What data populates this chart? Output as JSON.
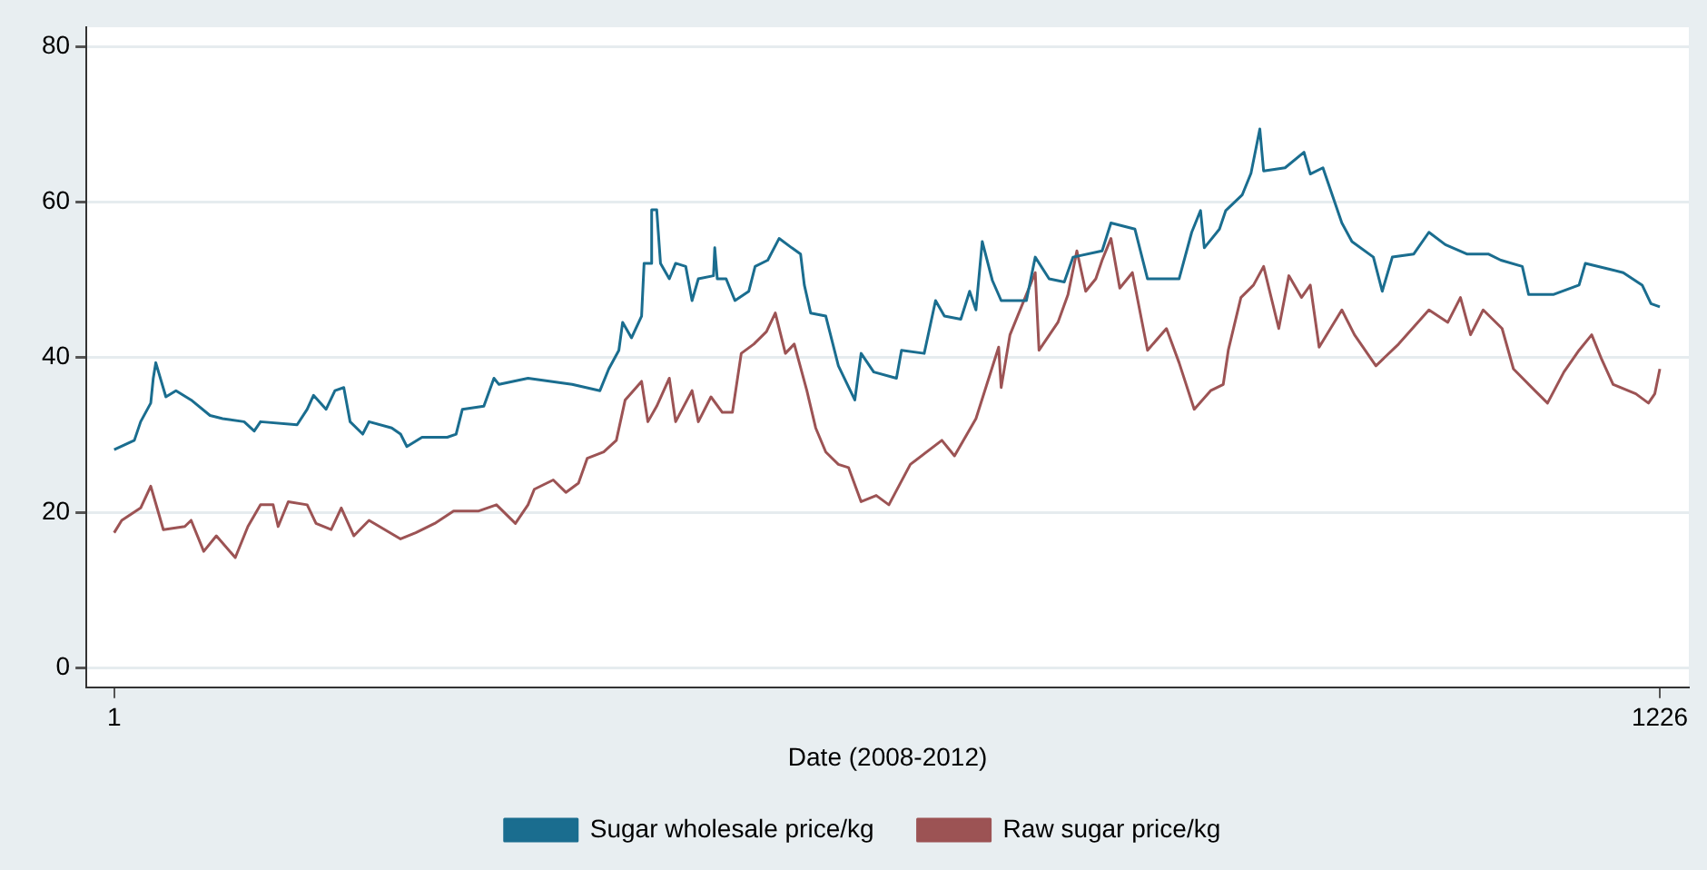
{
  "chart_data": {
    "type": "line",
    "xlabel": "Date (2008-2012)",
    "xlim": [
      -21,
      1249
    ],
    "xticks": [
      1,
      1226
    ],
    "ylim": [
      -2.5,
      82.5
    ],
    "yticks": [
      0,
      20,
      40,
      60,
      80
    ],
    "grid": "y",
    "legend": "bottom",
    "marker": "none",
    "line_style": "solid",
    "series": [
      {
        "name": "Sugar wholesale price/kg",
        "color": "#1a6d8f",
        "x": [
          1,
          17,
          22,
          30,
          32,
          34,
          42,
          50,
          62,
          77,
          87,
          104,
          112,
          117,
          146,
          154,
          159,
          169,
          176,
          183,
          188,
          198,
          203,
          221,
          228,
          233,
          245,
          265,
          272,
          277,
          294,
          302,
          306,
          329,
          364,
          386,
          393,
          401,
          404,
          411,
          419,
          421,
          426,
          427,
          431,
          434,
          441,
          446,
          454,
          459,
          464,
          476,
          477,
          479,
          486,
          493,
          504,
          509,
          519,
          528,
          538,
          545,
          548,
          553,
          565,
          575,
          588,
          593,
          603,
          621,
          625,
          643,
          652,
          659,
          672,
          679,
          684,
          689,
          697,
          704,
          724,
          731,
          742,
          754,
          761,
          784,
          791,
          810,
          820,
          845,
          855,
          862,
          865,
          877,
          882,
          895,
          902,
          909,
          912,
          929,
          944,
          949,
          959,
          974,
          982,
          999,
          1006,
          1014,
          1031,
          1043,
          1056,
          1073,
          1090,
          1100,
          1117,
          1122,
          1142,
          1162,
          1167,
          1187,
          1197,
          1212,
          1219,
          1226
        ],
        "values": [
          28.1,
          29.3,
          31.7,
          34.1,
          37.3,
          39.3,
          34.9,
          35.7,
          34.5,
          32.5,
          32.1,
          31.7,
          30.5,
          31.7,
          31.3,
          33.3,
          35.1,
          33.3,
          35.7,
          36.1,
          31.7,
          30.1,
          31.7,
          30.9,
          30.1,
          28.5,
          29.7,
          29.7,
          30.1,
          33.3,
          33.7,
          37.3,
          36.5,
          37.3,
          36.5,
          35.7,
          38.5,
          40.9,
          44.5,
          42.5,
          45.3,
          52.1,
          52.1,
          59.0,
          59.0,
          52.1,
          50.1,
          52.1,
          51.7,
          47.3,
          50.1,
          50.5,
          54.1,
          50.1,
          50.1,
          47.3,
          48.5,
          51.7,
          52.5,
          55.3,
          54.1,
          53.3,
          49.3,
          45.7,
          45.3,
          38.9,
          34.5,
          40.5,
          38.1,
          37.3,
          40.9,
          40.5,
          47.3,
          45.3,
          44.9,
          48.5,
          46.1,
          54.9,
          49.9,
          47.3,
          47.3,
          52.9,
          50.1,
          49.7,
          52.9,
          53.7,
          57.3,
          56.5,
          50.1,
          50.1,
          56.1,
          58.9,
          54.1,
          56.5,
          58.9,
          60.9,
          63.7,
          69.4,
          64.0,
          64.4,
          66.4,
          63.6,
          64.4,
          57.3,
          54.9,
          52.9,
          48.5,
          52.9,
          53.3,
          56.1,
          54.5,
          53.3,
          53.3,
          52.5,
          51.7,
          48.1,
          48.1,
          49.3,
          52.1,
          51.3,
          50.9,
          49.3,
          46.9,
          46.5
        ]
      },
      {
        "name": "Raw sugar price/kg",
        "color": "#9c5354",
        "x": [
          1,
          7,
          22,
          30,
          35,
          40,
          57,
          62,
          72,
          82,
          97,
          107,
          117,
          127,
          131,
          139,
          154,
          161,
          173,
          181,
          191,
          203,
          228,
          240,
          255,
          270,
          290,
          304,
          319,
          329,
          334,
          349,
          359,
          369,
          376,
          389,
          399,
          406,
          419,
          424,
          431,
          441,
          446,
          459,
          464,
          474,
          483,
          491,
          498,
          508,
          518,
          525,
          533,
          540,
          550,
          557,
          565,
          575,
          583,
          593,
          605,
          615,
          632,
          657,
          667,
          684,
          702,
          704,
          711,
          731,
          734,
          749,
          757,
          764,
          771,
          779,
          784,
          791,
          798,
          808,
          820,
          835,
          845,
          857,
          870,
          880,
          884,
          894,
          904,
          912,
          924,
          932,
          942,
          949,
          956,
          974,
          984,
          1001,
          1019,
          1043,
          1058,
          1068,
          1076,
          1086,
          1101,
          1110,
          1127,
          1137,
          1150,
          1162,
          1172,
          1180,
          1189,
          1207,
          1217,
          1222,
          1226
        ],
        "values": [
          17.4,
          19.0,
          20.6,
          23.4,
          20.6,
          17.8,
          18.2,
          19.0,
          15.0,
          17.0,
          14.2,
          18.2,
          21.0,
          21.0,
          18.2,
          21.4,
          21.0,
          18.6,
          17.8,
          20.6,
          17.0,
          19.0,
          16.6,
          17.4,
          18.6,
          20.2,
          20.2,
          21.0,
          18.6,
          21.0,
          23.0,
          24.2,
          22.6,
          23.8,
          27.0,
          27.8,
          29.3,
          34.5,
          36.9,
          31.7,
          33.7,
          37.3,
          31.7,
          35.7,
          31.7,
          34.9,
          32.9,
          32.9,
          40.5,
          41.7,
          43.3,
          45.7,
          40.5,
          41.7,
          35.7,
          30.9,
          27.8,
          26.2,
          25.8,
          21.4,
          22.2,
          21.0,
          26.2,
          29.3,
          27.3,
          32.1,
          41.3,
          36.1,
          42.9,
          50.9,
          40.9,
          44.5,
          48.1,
          53.7,
          48.5,
          50.1,
          52.5,
          55.3,
          48.9,
          50.9,
          40.9,
          43.7,
          39.3,
          33.3,
          35.7,
          36.5,
          40.9,
          47.7,
          49.3,
          51.7,
          43.7,
          50.5,
          47.7,
          49.3,
          41.3,
          46.1,
          42.9,
          38.9,
          41.7,
          46.1,
          44.5,
          47.7,
          42.9,
          46.1,
          43.7,
          38.5,
          35.7,
          34.1,
          38.1,
          40.9,
          42.9,
          39.7,
          36.5,
          35.3,
          34.1,
          35.3,
          38.5
        ]
      }
    ]
  }
}
